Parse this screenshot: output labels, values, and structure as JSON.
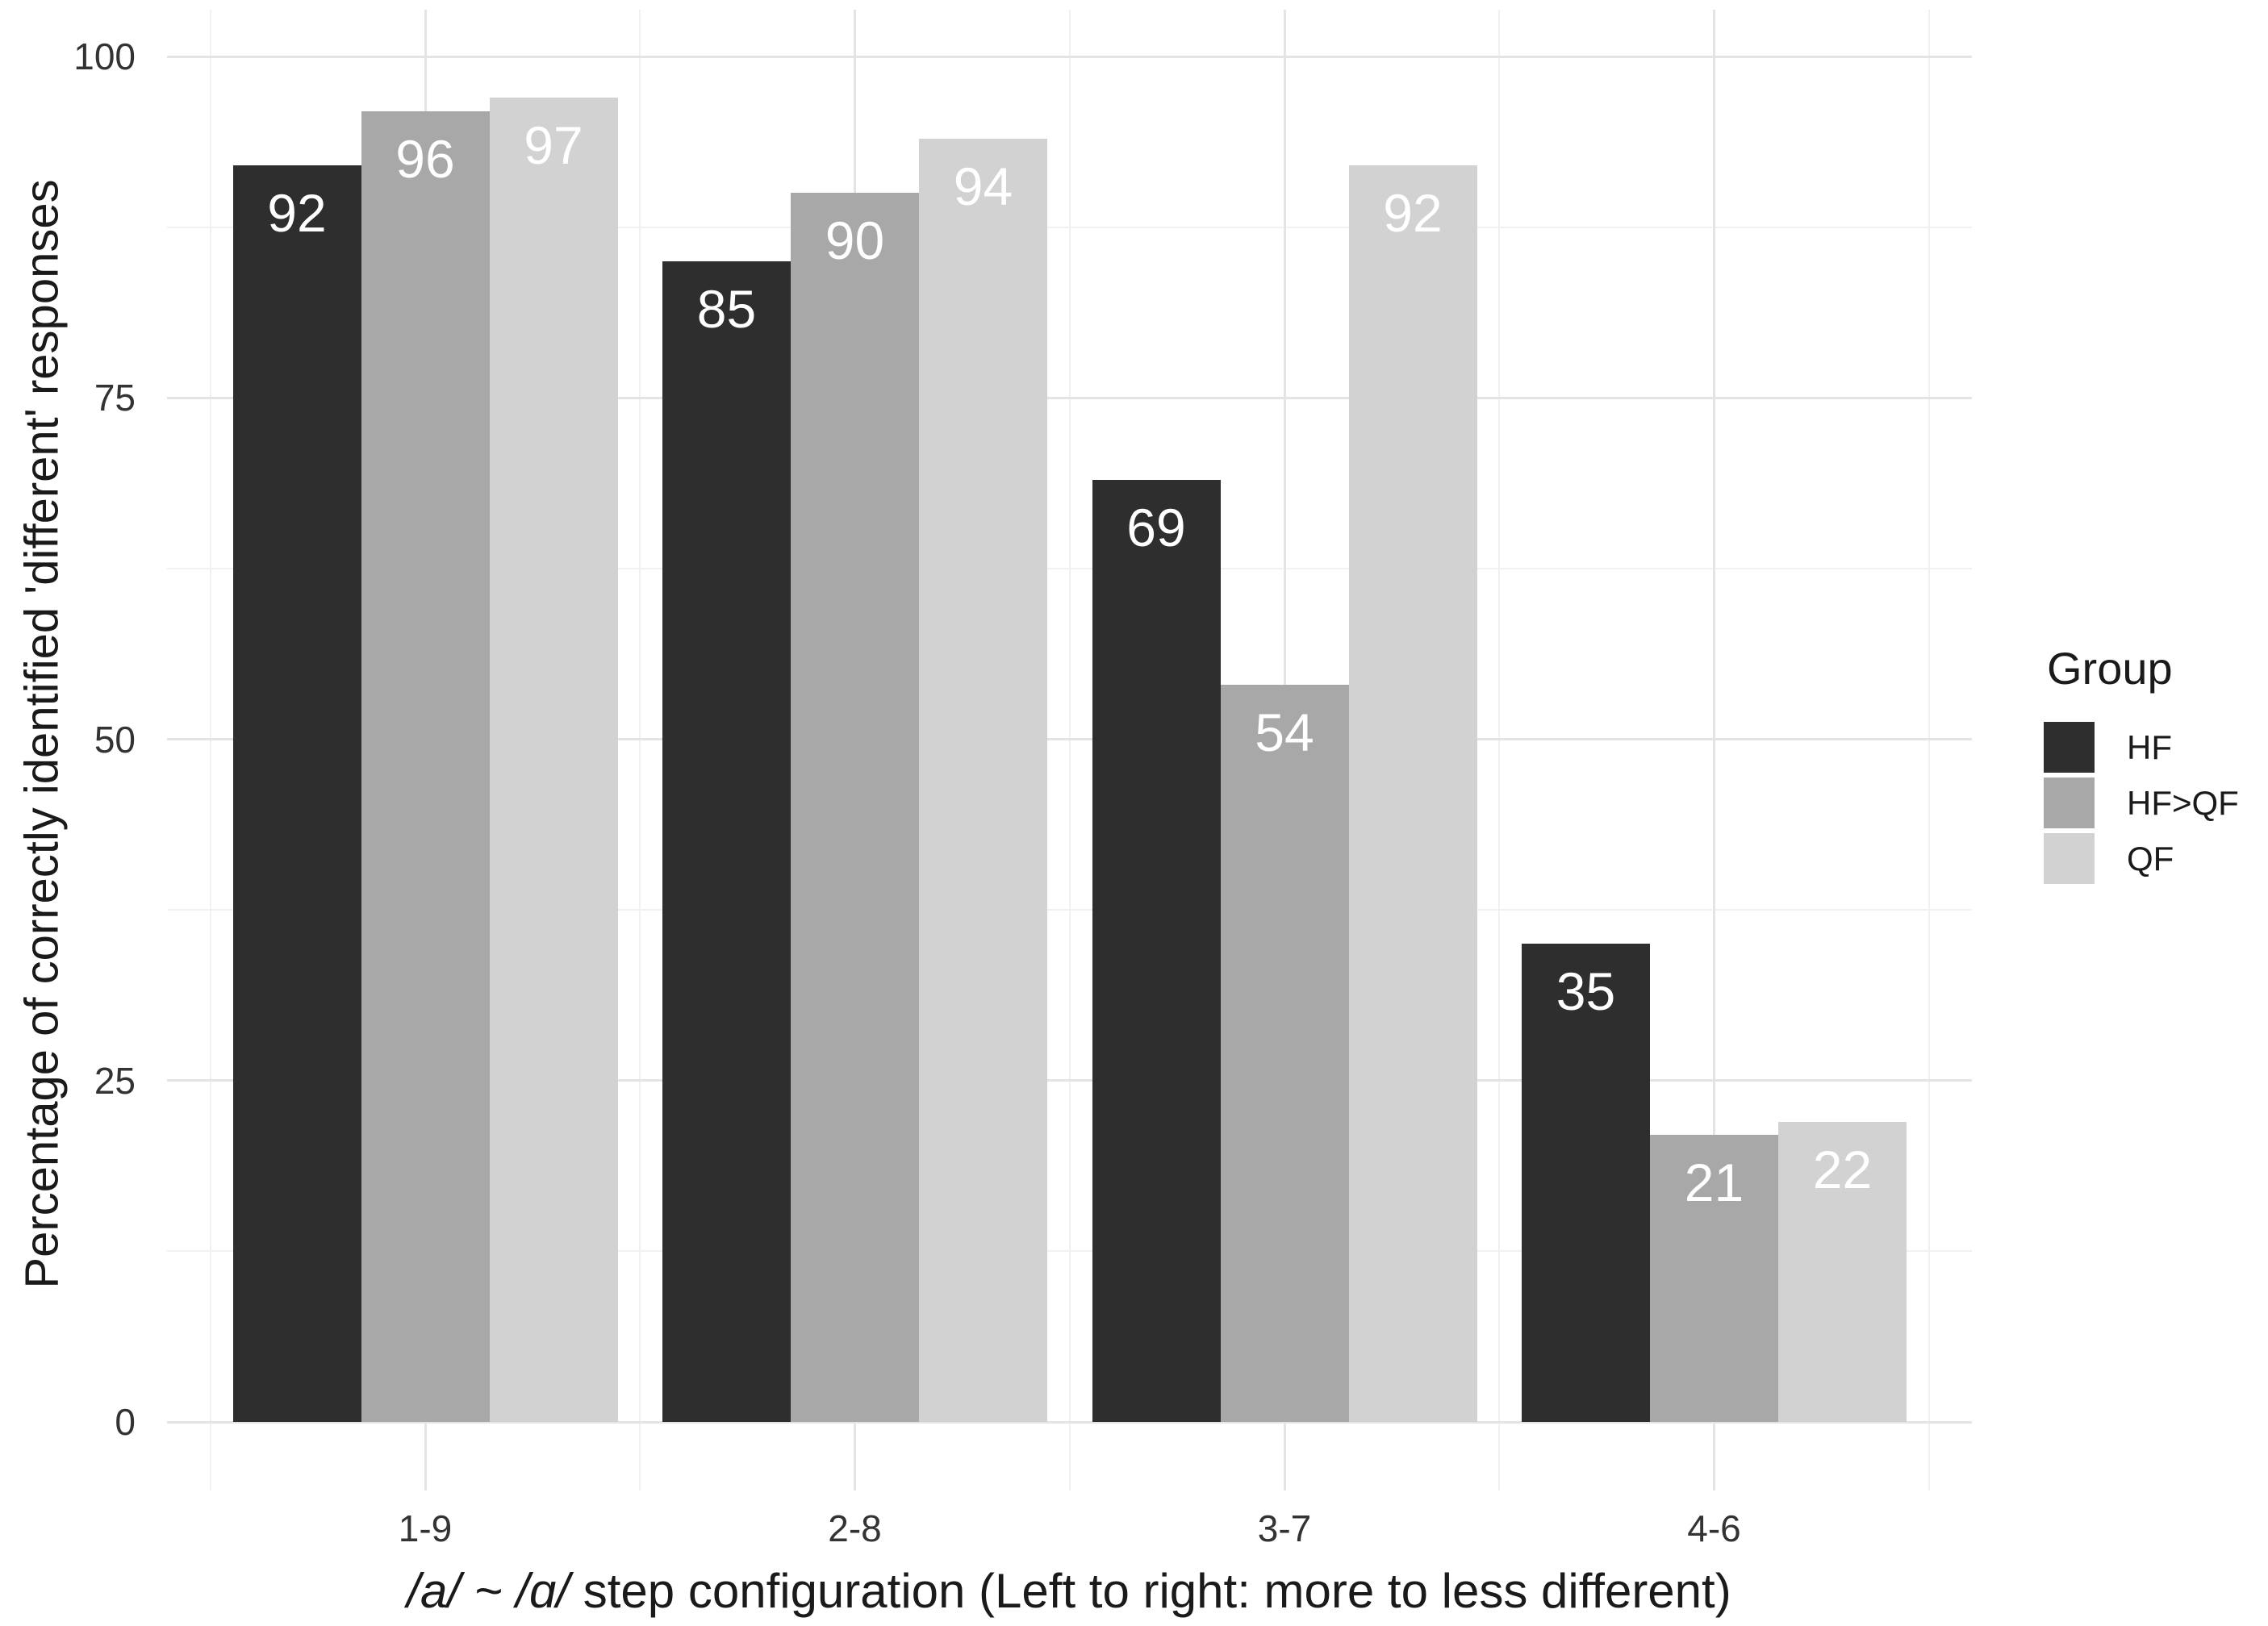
{
  "chart_data": {
    "type": "bar",
    "title": "",
    "categories": [
      "1-9",
      "2-8",
      "3-7",
      "4-6"
    ],
    "series": [
      {
        "name": "HF",
        "color": "#2e2e2e",
        "values": [
          92,
          85,
          69,
          35
        ]
      },
      {
        "name": "HF>QF",
        "color": "#a8a8a8",
        "values": [
          96,
          90,
          54,
          21
        ]
      },
      {
        "name": "QF",
        "color": "#d2d2d2",
        "values": [
          97,
          94,
          92,
          22
        ]
      }
    ],
    "xlabel": "/a/ ~ /ɑ/ step configuration (Left to right: more to less different)",
    "xlabel_italic": "/a/ ~ /ɑ/",
    "xlabel_rest": " step configuration (Left to right: more to less different)",
    "ylabel": "Percentage of correctly identified 'different' responses",
    "ylim": [
      0,
      100
    ],
    "yticks": [
      0,
      25,
      50,
      75,
      100
    ],
    "ytick_labels": [
      "0",
      "25",
      "50",
      "75",
      "100"
    ],
    "yminor": [
      12.5,
      37.5,
      62.5,
      87.5
    ],
    "bar_labels_visible": true,
    "bar_label_color": "#ffffff",
    "grid": {
      "major_color": "#e4e4e4",
      "minor_color": "#f1f1f1",
      "background": "#ffffff"
    },
    "legend": {
      "title": "Group",
      "position": "right",
      "entries": [
        "HF",
        "HF>QF",
        "QF"
      ]
    }
  }
}
